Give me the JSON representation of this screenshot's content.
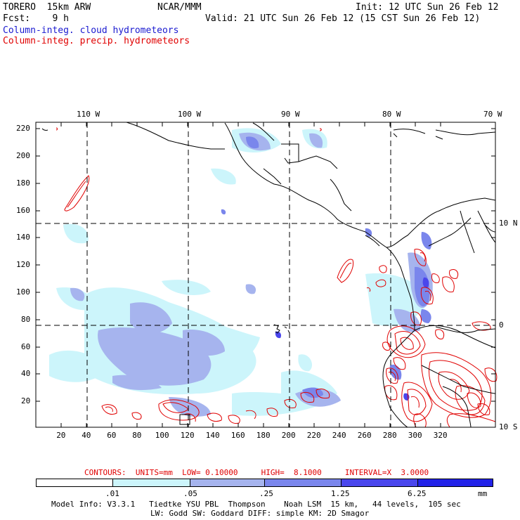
{
  "header": {
    "model": "TORERO  15km ARW",
    "org": "NCAR/MMM",
    "init": "Init: 12 UTC Sun 26 Feb 12",
    "fcst": "Fcst:    9 h",
    "valid": "Valid: 21 UTC Sun 26 Feb 12 (15 CST Sun 26 Feb 12)",
    "field1": "Column-integ. cloud hydrometeors",
    "field2": "Column-integ. precip. hydrometeors"
  },
  "map": {
    "lon_labels": [
      "110 W",
      "100 W",
      "90 W",
      "80 W",
      "70 W"
    ],
    "lat_labels": [
      "10 N",
      "0",
      "10 S"
    ],
    "x_ticks": [
      "20",
      "40",
      "60",
      "80",
      "100",
      "120",
      "140",
      "160",
      "180",
      "200",
      "220",
      "240",
      "260",
      "280",
      "300",
      "320"
    ],
    "y_ticks": [
      "20",
      "40",
      "60",
      "80",
      "100",
      "120",
      "140",
      "160",
      "180",
      "200",
      "220"
    ]
  },
  "contours": {
    "text": "CONTOURS:  UNITS=mm  LOW= 0.10000     HIGH=  8.1000     INTERVAL=X  3.0000"
  },
  "colorbar": {
    "labels": [
      ".01",
      ".05",
      ".25",
      "1.25",
      "6.25"
    ],
    "unit": "mm",
    "colors": [
      "#ffffff",
      "#ccf5fb",
      "#a6b4ee",
      "#7a86ec",
      "#4a46ec",
      "#2222e8"
    ]
  },
  "footer": {
    "line1": "Model Info: V3.3.1   Tiedtke YSU PBL  Thompson    Noah LSM  15 km,   44 levels,  105 sec",
    "line2": "LW: Godd SW: Goddard DIFF: simple KM: 2D Smagor"
  },
  "colors": {
    "cloud_label": "#1a1ad0",
    "precip_label": "#e00000",
    "precip_contour": "#e00000"
  }
}
